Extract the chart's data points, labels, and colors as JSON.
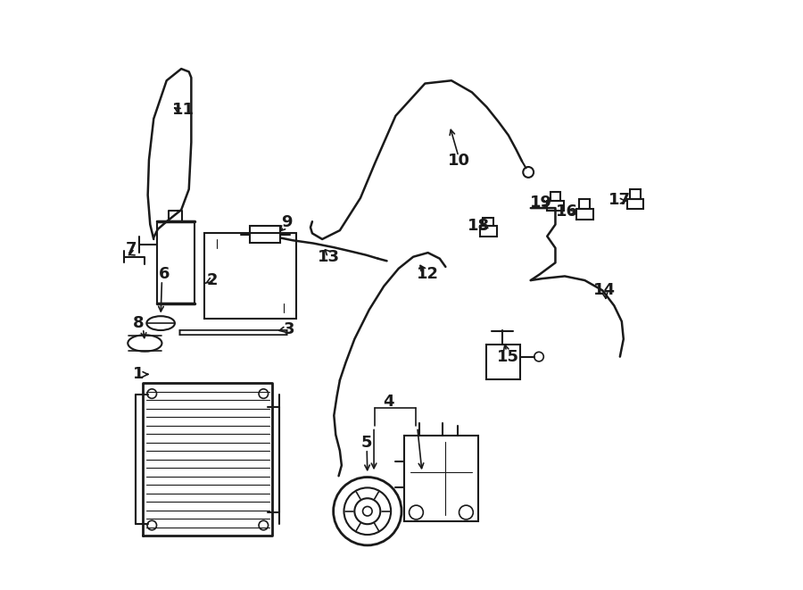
{
  "bg_color": "#ffffff",
  "line_color": "#1a1a1a",
  "lw": 1.5,
  "fig_width": 9.0,
  "fig_height": 6.61,
  "font_size": 13
}
